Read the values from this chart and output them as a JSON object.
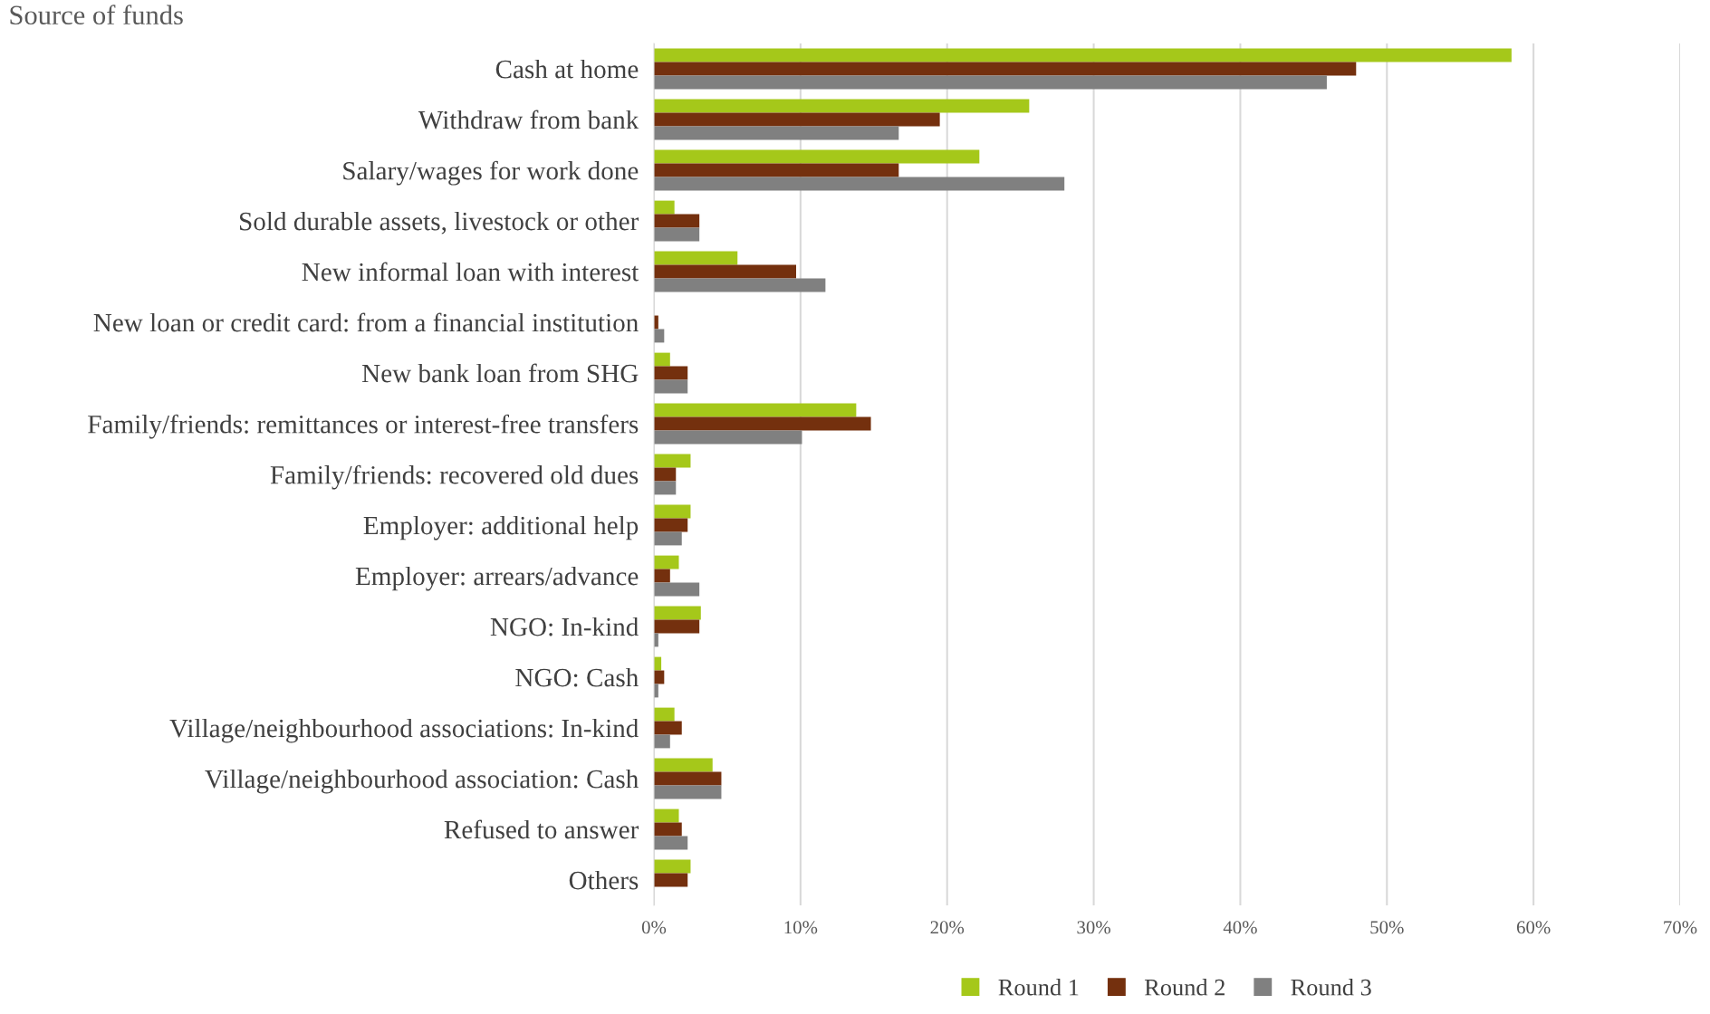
{
  "chart_data": {
    "type": "bar",
    "orientation": "horizontal",
    "title": "Source of funds",
    "categories": [
      "Cash at home",
      "Withdraw from bank",
      "Salary/wages for work done",
      "Sold durable assets, livestock or other",
      "New informal loan with interest",
      "New loan or credit card: from a financial institution",
      "New bank loan from SHG",
      "Family/friends: remittances or interest-free transfers",
      "Family/friends: recovered old dues",
      "Employer: additional help",
      "Employer: arrears/advance",
      "NGO: In-kind",
      "NGO: Cash",
      "Village/neighbourhood associations: In-kind",
      "Village/neighbourhood association: Cash",
      "Refused to answer",
      "Others"
    ],
    "series": [
      {
        "name": "Round 1",
        "color": "#a5c81a",
        "values": [
          0.585,
          0.256,
          0.222,
          0.014,
          0.057,
          0,
          0.011,
          0.138,
          0.025,
          0.025,
          0.017,
          0.032,
          0.005,
          0.014,
          0.04,
          0.017,
          0.025
        ]
      },
      {
        "name": "Round 2",
        "color": "#74300e",
        "values": [
          0.479,
          0.195,
          0.167,
          0.031,
          0.097,
          0.003,
          0.023,
          0.148,
          0.015,
          0.023,
          0.011,
          0.031,
          0.007,
          0.019,
          0.046,
          0.019,
          0.023
        ]
      },
      {
        "name": "Round 3",
        "color": "#808080",
        "values": [
          0.459,
          0.167,
          0.28,
          0.031,
          0.117,
          0.007,
          0.023,
          0.101,
          0.015,
          0.019,
          0.031,
          0.003,
          0.003,
          0.011,
          0.046,
          0.023,
          null
        ]
      }
    ],
    "xlim": [
      0,
      0.7
    ],
    "xticks": [
      {
        "value": 0,
        "label": "0%"
      },
      {
        "value": 0.1,
        "label": "10%"
      },
      {
        "value": 0.2,
        "label": "20%"
      },
      {
        "value": 0.3,
        "label": "30%"
      },
      {
        "value": 0.4,
        "label": "40%"
      },
      {
        "value": 0.5,
        "label": "50%"
      },
      {
        "value": 0.6,
        "label": "60%"
      },
      {
        "value": 0.7,
        "label": "70%"
      }
    ],
    "grid": "x",
    "legend": "bottom"
  }
}
